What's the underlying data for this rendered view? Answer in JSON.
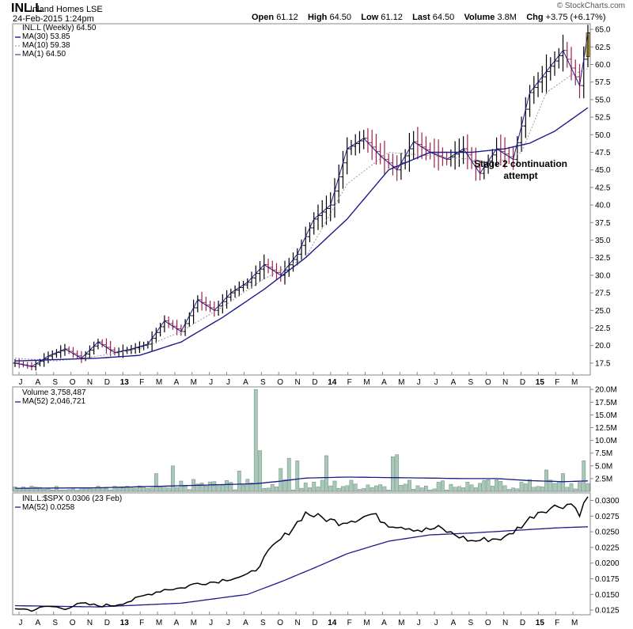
{
  "header": {
    "symbol": "INL.L",
    "name": "Inland Homes",
    "exchange": "LSE",
    "date": "24-Feb-2015 1:24pm",
    "source": "© StockCharts.com",
    "open_label": "Open",
    "open": "61.12",
    "high_label": "High",
    "high": "64.50",
    "low_label": "Low",
    "low": "61.12",
    "last_label": "Last",
    "last": "64.50",
    "volume_label": "Volume",
    "volume": "3.8M",
    "chg_label": "Chg",
    "chg": "+3.75 (+6.17%)"
  },
  "legends": {
    "price": [
      "INL.L (Weekly) 64.50",
      "MA(30) 53.85",
      "MA(10) 59.38",
      "MA(1) 64.50"
    ],
    "volume": [
      "Volume 3,758,487",
      "MA(52) 2,046,721"
    ],
    "ratio": [
      "INL.L:$SPX 0.0306 (23 Feb)",
      "MA(52) 0.0258"
    ]
  },
  "annotation": [
    "Stage 2 continuation",
    "attempt"
  ],
  "colors": {
    "ma30": "#1b1b8c",
    "ma10": "#9a9a9a",
    "price": "#000000",
    "down_bar": "#a0204a",
    "volume_fill": "#a8c8b8",
    "volume_ma": "#1b1b8c",
    "ratio_ma": "#1b1b8c",
    "last_bar_highlight": "#ffe030"
  },
  "chart_data": [
    {
      "type": "line",
      "panel": "price",
      "title": "INL.L (Weekly)",
      "ylim": [
        15.8,
        65.8
      ],
      "y_ticks": [
        "17.5",
        "20.0",
        "22.5",
        "25.0",
        "27.5",
        "30.0",
        "32.5",
        "35.0",
        "37.5",
        "40.0",
        "42.5",
        "45.0",
        "47.5",
        "50.0",
        "52.5",
        "55.0",
        "57.5",
        "60.0",
        "62.5",
        "65.0"
      ],
      "x_tick_labels": [
        "J",
        "A",
        "S",
        "O",
        "N",
        "D",
        "13",
        "F",
        "M",
        "A",
        "M",
        "J",
        "J",
        "A",
        "S",
        "O",
        "N",
        "D",
        "14",
        "F",
        "M",
        "A",
        "M",
        "J",
        "J",
        "A",
        "S",
        "O",
        "N",
        "D",
        "15",
        "F",
        "M"
      ],
      "series": [
        {
          "name": "MA(1)",
          "key_x": [
            0,
            4,
            8,
            12,
            16,
            20,
            24,
            28,
            32,
            36,
            40,
            44,
            48,
            52,
            56,
            60,
            64,
            68,
            72,
            76,
            80,
            84,
            88,
            92,
            96,
            100,
            104,
            108,
            112,
            116,
            120,
            124,
            128,
            132,
            136,
            138
          ],
          "values": [
            17.5,
            17.0,
            18.5,
            19.5,
            18.2,
            20.5,
            19.0,
            19.5,
            20.2,
            23.5,
            22.0,
            26.5,
            25.0,
            27.5,
            29.0,
            31.5,
            30.0,
            33.0,
            38.0,
            40.0,
            48.0,
            49.5,
            47.0,
            45.0,
            49.0,
            47.5,
            46.5,
            48.0,
            44.5,
            48.0,
            46.5,
            56.0,
            59.0,
            62.0,
            57.0,
            64.5
          ]
        },
        {
          "name": "MA(10)",
          "key_x": [
            0,
            10,
            20,
            30,
            40,
            50,
            60,
            70,
            80,
            90,
            100,
            110,
            116,
            122,
            128,
            134,
            138
          ],
          "values": [
            18.2,
            17.8,
            18.5,
            19.5,
            22.0,
            25.5,
            29.5,
            32.5,
            43.0,
            47.5,
            47.0,
            46.5,
            46.0,
            47.5,
            56.0,
            58.5,
            59.4
          ]
        },
        {
          "name": "MA(30)",
          "key_x": [
            0,
            10,
            20,
            30,
            40,
            50,
            60,
            70,
            80,
            90,
            100,
            110,
            118,
            124,
            130,
            138
          ],
          "values": [
            17.8,
            18.0,
            18.2,
            18.6,
            20.5,
            24.0,
            28.0,
            32.5,
            38.0,
            45.0,
            47.5,
            47.5,
            48.0,
            48.8,
            50.5,
            53.85
          ]
        }
      ]
    },
    {
      "type": "bar",
      "panel": "volume",
      "title": "Volume",
      "ylim": [
        0,
        20500000
      ],
      "y_ticks": [
        "2.5M",
        "5.0M",
        "7.5M",
        "10.0M",
        "12.5M",
        "15.0M",
        "17.5M",
        "20.0M"
      ],
      "spikes": [
        [
          58,
          20000000
        ],
        [
          59,
          8000000
        ],
        [
          54,
          4000000
        ],
        [
          66,
          6500000
        ],
        [
          68,
          6000000
        ],
        [
          75,
          7000000
        ],
        [
          91,
          6800000
        ],
        [
          92,
          7200000
        ],
        [
          137,
          6000000
        ],
        [
          38,
          5000000
        ],
        [
          34,
          3500000
        ],
        [
          64,
          4500000
        ],
        [
          128,
          4200000
        ],
        [
          132,
          3500000
        ]
      ],
      "series": [
        {
          "name": "MA(52)",
          "key_x": [
            0,
            20,
            40,
            58,
            64,
            70,
            80,
            100,
            108,
            116,
            124,
            132,
            138
          ],
          "values": [
            600000,
            700000,
            1100000,
            1500000,
            2000000,
            2600000,
            2800000,
            2600000,
            2500000,
            2500000,
            2100000,
            1900000,
            2046721
          ]
        }
      ]
    },
    {
      "type": "line",
      "panel": "ratio",
      "title": "INL.L:$SPX",
      "ylim": [
        0.01175,
        0.0312
      ],
      "y_ticks": [
        "0.0125",
        "0.0150",
        "0.0175",
        "0.0200",
        "0.0225",
        "0.0250",
        "0.0275",
        "0.0300"
      ],
      "series": [
        {
          "name": "INL.L:$SPX",
          "key_x": [
            0,
            4,
            8,
            12,
            16,
            20,
            24,
            28,
            32,
            36,
            40,
            44,
            48,
            52,
            56,
            58,
            62,
            66,
            70,
            74,
            78,
            82,
            86,
            90,
            94,
            98,
            102,
            106,
            110,
            114,
            118,
            122,
            126,
            130,
            134,
            136,
            138
          ],
          "values": [
            0.0128,
            0.0125,
            0.0131,
            0.0128,
            0.0135,
            0.0132,
            0.0133,
            0.014,
            0.015,
            0.0158,
            0.016,
            0.0168,
            0.017,
            0.0176,
            0.018,
            0.019,
            0.0225,
            0.025,
            0.028,
            0.0272,
            0.0265,
            0.027,
            0.0278,
            0.0262,
            0.0258,
            0.0252,
            0.0256,
            0.0245,
            0.0235,
            0.0238,
            0.024,
            0.026,
            0.0282,
            0.029,
            0.0295,
            0.028,
            0.0306
          ]
        },
        {
          "name": "MA(52)",
          "key_x": [
            0,
            20,
            40,
            56,
            64,
            72,
            80,
            90,
            100,
            110,
            120,
            130,
            138
          ],
          "values": [
            0.0132,
            0.013,
            0.0136,
            0.015,
            0.017,
            0.0192,
            0.0215,
            0.0235,
            0.0245,
            0.0248,
            0.0252,
            0.0256,
            0.0258
          ]
        }
      ]
    }
  ]
}
